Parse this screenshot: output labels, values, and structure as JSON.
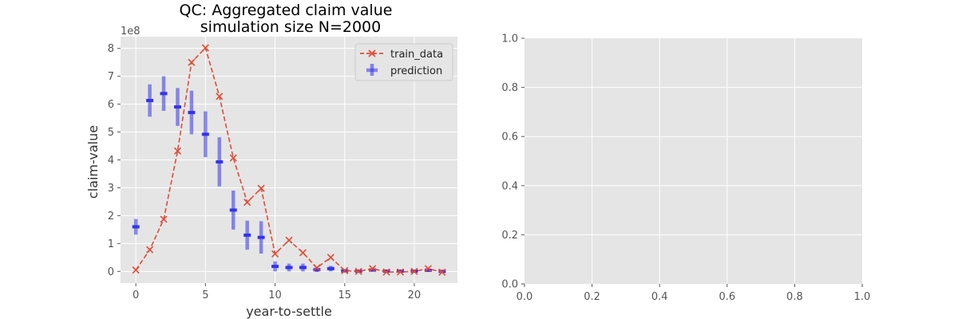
{
  "colors": {
    "panel_bg": "#e5e5e5",
    "grid": "#ffffff",
    "train": "#e24a33",
    "prediction": "#3333ee"
  },
  "chart_data": [
    {
      "type": "line",
      "title_line1": "QC: Aggregated claim value",
      "title_line2": "simulation size N=2000",
      "xlabel": "year-to-settle",
      "ylabel": "claim-value",
      "y_offset_text": "1e8",
      "xlim": [
        -1.1,
        23.1
      ],
      "ylim": [
        -0.42,
        8.42
      ],
      "x_ticks": [
        0,
        5,
        10,
        15,
        20
      ],
      "y_ticks": [
        0,
        1,
        2,
        3,
        4,
        5,
        6,
        7,
        8
      ],
      "grid": true,
      "legend_position": "top-right",
      "series": [
        {
          "name": "train_data",
          "style": "dashed-line-x-markers",
          "x": [
            0,
            1,
            2,
            3,
            4,
            5,
            6,
            7,
            8,
            9,
            10,
            11,
            12,
            13,
            14,
            15,
            16,
            17,
            18,
            19,
            20,
            21,
            22
          ],
          "y": [
            0.05,
            0.78,
            1.87,
            4.32,
            7.5,
            8.02,
            6.28,
            4.07,
            2.48,
            2.98,
            0.63,
            1.12,
            0.67,
            0.13,
            0.5,
            0.03,
            0.0,
            0.1,
            -0.02,
            -0.02,
            0.0,
            0.1,
            -0.03
          ]
        },
        {
          "name": "prediction",
          "style": "errorbar",
          "x": [
            0,
            1,
            2,
            3,
            4,
            5,
            6,
            7,
            8,
            9,
            10,
            11,
            12,
            13,
            14,
            15,
            16,
            17,
            18,
            19,
            20,
            21,
            22
          ],
          "y": [
            1.6,
            6.13,
            6.38,
            5.9,
            5.7,
            4.92,
            3.93,
            2.2,
            1.3,
            1.22,
            0.18,
            0.14,
            0.14,
            0.06,
            0.1,
            0.02,
            0.01,
            0.05,
            0.01,
            0.01,
            0.01,
            0.04,
            0.0
          ],
          "err": [
            0.28,
            0.58,
            0.62,
            0.68,
            0.78,
            0.82,
            0.88,
            0.7,
            0.52,
            0.58,
            0.18,
            0.14,
            0.14,
            0.08,
            0.1,
            0.05,
            0.03,
            0.06,
            0.03,
            0.03,
            0.03,
            0.05,
            0.03
          ]
        }
      ]
    },
    {
      "type": "line",
      "xlim": [
        0,
        1
      ],
      "ylim": [
        0,
        1
      ],
      "x_ticks": [
        "0.0",
        "0.2",
        "0.4",
        "0.6",
        "0.8",
        "1.0"
      ],
      "y_ticks": [
        "0.0",
        "0.2",
        "0.4",
        "0.6",
        "0.8",
        "1.0"
      ],
      "grid": true,
      "series": []
    }
  ]
}
